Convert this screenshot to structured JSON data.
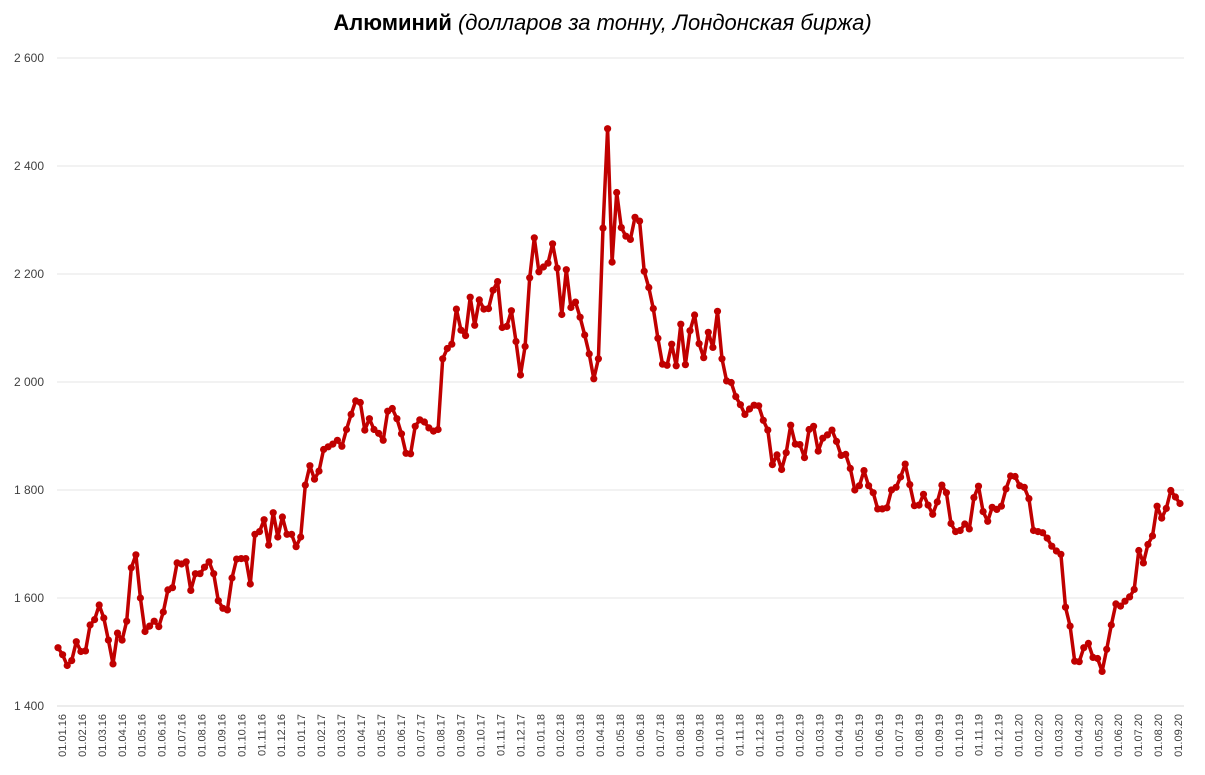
{
  "title": {
    "main": "Алюминий",
    "sub": "(долларов за тонну, Лондонская биржа)"
  },
  "colors": {
    "line": "#c00000",
    "grid": "#e6e6e6",
    "tick_text": "#404040"
  },
  "chart_data": {
    "type": "line",
    "title": "Алюминий (долларов за тонну, Лондонская биржа)",
    "xlabel": "",
    "ylabel": "",
    "ylim": [
      1400,
      2600
    ],
    "y_ticks": [
      1400,
      1600,
      1800,
      2000,
      2200,
      2400,
      2600
    ],
    "y_tick_labels": [
      "1 400",
      "1 600",
      "1 800",
      "2 000",
      "2 200",
      "2 400",
      "2 600"
    ],
    "grid": true,
    "legend": "none",
    "x_tick_labels": [
      "01.01.16",
      "01.02.16",
      "01.03.16",
      "01.04.16",
      "01.05.16",
      "01.06.16",
      "01.07.16",
      "01.08.16",
      "01.09.16",
      "01.10.16",
      "01.11.16",
      "01.12.16",
      "01.01.17",
      "01.02.17",
      "01.03.17",
      "01.04.17",
      "01.05.17",
      "01.06.17",
      "01.07.17",
      "01.08.17",
      "01.09.17",
      "01.10.17",
      "01.11.17",
      "01.12.17",
      "01.01.18",
      "01.02.18",
      "01.03.18",
      "01.04.18",
      "01.05.18",
      "01.06.18",
      "01.07.18",
      "01.08.18",
      "01.09.18",
      "01.10.18",
      "01.11.18",
      "01.12.18",
      "01.01.19",
      "01.02.19",
      "01.03.19",
      "01.04.19",
      "01.05.19",
      "01.06.19",
      "01.07.19",
      "01.08.19",
      "01.09.19",
      "01.10.19",
      "01.11.19",
      "01.12.19",
      "01.01.20",
      "01.02.20",
      "01.03.20",
      "01.04.20",
      "01.05.20",
      "01.06.20",
      "01.07.20",
      "01.08.20",
      "01.09.20"
    ],
    "series": [
      {
        "values": [
          1508,
          1495,
          1475,
          1484,
          1519,
          1501,
          1502,
          1550,
          1560,
          1587,
          1563,
          1522,
          1478,
          1535,
          1522,
          1557,
          1656,
          1680,
          1600,
          1538,
          1548,
          1557,
          1547,
          1574,
          1615,
          1619,
          1665,
          1663,
          1667,
          1614,
          1645,
          1645,
          1657,
          1667,
          1645,
          1595,
          1581,
          1578,
          1637,
          1672,
          1673,
          1673,
          1626,
          1718,
          1723,
          1745,
          1698,
          1758,
          1713,
          1750,
          1718,
          1718,
          1695,
          1713,
          1809,
          1845,
          1820,
          1835,
          1875,
          1880,
          1885,
          1892,
          1881,
          1912,
          1940,
          1965,
          1962,
          1911,
          1932,
          1912,
          1905,
          1892,
          1946,
          1951,
          1932,
          1904,
          1868,
          1867,
          1918,
          1930,
          1926,
          1915,
          1909,
          1912,
          2043,
          2062,
          2070,
          2135,
          2096,
          2086,
          2157,
          2105,
          2152,
          2135,
          2136,
          2170,
          2186,
          2101,
          2103,
          2132,
          2075,
          2013,
          2066,
          2193,
          2267,
          2204,
          2213,
          2220,
          2256,
          2211,
          2125,
          2208,
          2138,
          2148,
          2120,
          2087,
          2052,
          2006,
          2043,
          2285,
          2469,
          2222,
          2351,
          2286,
          2270,
          2264,
          2305,
          2298,
          2205,
          2175,
          2136,
          2081,
          2033,
          2031,
          2070,
          2030,
          2107,
          2032,
          2095,
          2124,
          2071,
          2045,
          2092,
          2064,
          2131,
          2043,
          2002,
          1999,
          1973,
          1958,
          1940,
          1950,
          1957,
          1956,
          1929,
          1911,
          1847,
          1865,
          1838,
          1869,
          1920,
          1885,
          1884,
          1860,
          1912,
          1918,
          1872,
          1896,
          1902,
          1911,
          1890,
          1864,
          1866,
          1840,
          1800,
          1808,
          1836,
          1808,
          1795,
          1765,
          1765,
          1767,
          1800,
          1805,
          1824,
          1848,
          1810,
          1771,
          1772,
          1792,
          1772,
          1755,
          1778,
          1809,
          1795,
          1738,
          1723,
          1725,
          1737,
          1728,
          1786,
          1807,
          1760,
          1742,
          1768,
          1764,
          1770,
          1802,
          1826,
          1825,
          1808,
          1805,
          1784,
          1725,
          1723,
          1721,
          1711,
          1696,
          1687,
          1681,
          1583,
          1548,
          1483,
          1482,
          1508,
          1516,
          1490,
          1488,
          1464,
          1505,
          1550,
          1589,
          1585,
          1594,
          1602,
          1616,
          1688,
          1665,
          1699,
          1715,
          1770,
          1748,
          1766,
          1799,
          1787,
          1775
        ]
      }
    ]
  }
}
